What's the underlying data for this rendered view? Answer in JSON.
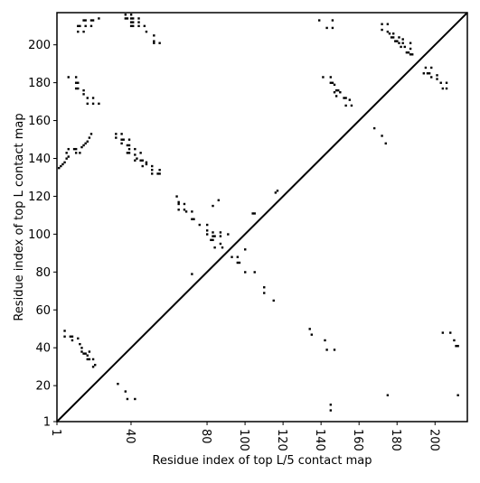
{
  "chart_data": {
    "type": "heatmap",
    "xlabel": "Residue index of top L/5 contact map",
    "ylabel": "Residue index of top L contact map",
    "xlim": [
      1,
      217
    ],
    "ylim": [
      1,
      217
    ],
    "x_ticks": [
      {
        "value": 1,
        "label": "1"
      },
      {
        "value": 40,
        "label": "40"
      },
      {
        "value": 80,
        "label": "80"
      },
      {
        "value": 100,
        "label": "100"
      },
      {
        "value": 120,
        "label": "120"
      },
      {
        "value": 140,
        "label": "140"
      },
      {
        "value": 160,
        "label": "160"
      },
      {
        "value": 180,
        "label": "180"
      },
      {
        "value": 200,
        "label": "200"
      }
    ],
    "y_ticks": [
      {
        "value": 1,
        "label": "1"
      },
      {
        "value": 20,
        "label": "20"
      },
      {
        "value": 40,
        "label": "40"
      },
      {
        "value": 60,
        "label": "60"
      },
      {
        "value": 80,
        "label": "80"
      },
      {
        "value": 100,
        "label": "100"
      },
      {
        "value": 120,
        "label": "120"
      },
      {
        "value": 140,
        "label": "140"
      },
      {
        "value": 160,
        "label": "160"
      },
      {
        "value": 180,
        "label": "180"
      },
      {
        "value": 200,
        "label": "200"
      }
    ],
    "diagonal": true,
    "grid": false,
    "contact_color": "#000000",
    "contacts": [
      [
        15,
        213
      ],
      [
        16,
        213
      ],
      [
        19,
        213
      ],
      [
        20,
        213
      ],
      [
        23,
        214
      ],
      [
        12,
        210
      ],
      [
        13,
        210
      ],
      [
        16,
        210
      ],
      [
        19,
        210
      ],
      [
        12,
        207
      ],
      [
        15,
        207
      ],
      [
        37,
        216
      ],
      [
        40,
        216
      ],
      [
        37,
        214
      ],
      [
        38,
        214
      ],
      [
        40,
        214
      ],
      [
        41,
        214
      ],
      [
        44,
        214
      ],
      [
        40,
        212
      ],
      [
        41,
        212
      ],
      [
        44,
        212
      ],
      [
        40,
        210
      ],
      [
        41,
        210
      ],
      [
        44,
        210
      ],
      [
        47,
        210
      ],
      [
        48,
        207
      ],
      [
        52,
        205
      ],
      [
        52,
        202
      ],
      [
        52,
        201
      ],
      [
        55,
        201
      ],
      [
        7,
        183
      ],
      [
        11,
        183
      ],
      [
        11,
        180
      ],
      [
        12,
        180
      ],
      [
        11,
        177
      ],
      [
        12,
        177
      ],
      [
        15,
        176
      ],
      [
        15,
        174
      ],
      [
        17,
        172
      ],
      [
        20,
        172
      ],
      [
        17,
        169
      ],
      [
        20,
        169
      ],
      [
        23,
        169
      ],
      [
        32,
        153
      ],
      [
        32,
        151
      ],
      [
        35,
        153
      ],
      [
        35,
        150
      ],
      [
        36,
        150
      ],
      [
        39,
        150
      ],
      [
        35,
        148
      ],
      [
        38,
        147
      ],
      [
        39,
        147
      ],
      [
        39,
        145
      ],
      [
        42,
        145
      ],
      [
        38,
        143
      ],
      [
        39,
        143
      ],
      [
        42,
        142
      ],
      [
        45,
        143
      ],
      [
        43,
        140
      ],
      [
        42,
        139
      ],
      [
        45,
        139
      ],
      [
        46,
        139
      ],
      [
        48,
        138
      ],
      [
        48,
        137
      ],
      [
        46,
        136
      ],
      [
        51,
        136
      ],
      [
        51,
        134
      ],
      [
        55,
        134
      ],
      [
        51,
        132
      ],
      [
        54,
        132
      ],
      [
        55,
        132
      ],
      [
        2,
        135
      ],
      [
        3,
        136
      ],
      [
        4,
        137
      ],
      [
        5,
        138
      ],
      [
        6,
        140
      ],
      [
        7,
        141
      ],
      [
        6,
        143
      ],
      [
        7,
        145
      ],
      [
        10,
        145
      ],
      [
        11,
        145
      ],
      [
        11,
        143
      ],
      [
        13,
        143
      ],
      [
        14,
        146
      ],
      [
        15,
        147
      ],
      [
        16,
        148
      ],
      [
        17,
        149
      ],
      [
        18,
        151
      ],
      [
        19,
        153
      ],
      [
        64,
        120
      ],
      [
        65,
        117
      ],
      [
        65,
        116
      ],
      [
        68,
        116
      ],
      [
        65,
        113
      ],
      [
        68,
        113
      ],
      [
        69,
        112
      ],
      [
        72,
        112
      ],
      [
        72,
        108
      ],
      [
        73,
        108
      ],
      [
        76,
        105
      ],
      [
        80,
        105
      ],
      [
        80,
        102
      ],
      [
        80,
        100
      ],
      [
        83,
        101
      ],
      [
        83,
        99
      ],
      [
        84,
        99
      ],
      [
        87,
        101
      ],
      [
        87,
        99
      ],
      [
        82,
        97
      ],
      [
        83,
        97
      ],
      [
        87,
        95
      ],
      [
        84,
        93
      ],
      [
        88,
        93
      ],
      [
        83,
        115
      ],
      [
        86,
        118
      ],
      [
        91,
        100
      ],
      [
        72,
        79
      ],
      [
        96,
        85
      ],
      [
        97,
        85
      ],
      [
        93,
        88
      ],
      [
        96,
        88
      ],
      [
        100,
        92
      ],
      [
        100,
        80
      ],
      [
        105,
        80
      ],
      [
        104,
        111
      ],
      [
        105,
        111
      ],
      [
        116,
        122
      ],
      [
        117,
        123
      ],
      [
        110,
        72
      ],
      [
        110,
        69
      ],
      [
        115,
        65
      ],
      [
        134,
        50
      ],
      [
        135,
        47
      ],
      [
        142,
        44
      ],
      [
        143,
        39
      ],
      [
        147,
        39
      ],
      [
        145,
        10
      ],
      [
        145,
        7
      ],
      [
        139,
        213
      ],
      [
        143,
        209
      ],
      [
        146,
        213
      ],
      [
        146,
        209
      ],
      [
        141,
        183
      ],
      [
        145,
        183
      ],
      [
        145,
        180
      ],
      [
        146,
        180
      ],
      [
        147,
        179
      ],
      [
        148,
        176
      ],
      [
        149,
        176
      ],
      [
        147,
        175
      ],
      [
        150,
        175
      ],
      [
        148,
        173
      ],
      [
        152,
        172
      ],
      [
        153,
        172
      ],
      [
        153,
        168
      ],
      [
        156,
        168
      ],
      [
        155,
        171
      ],
      [
        172,
        211
      ],
      [
        175,
        211
      ],
      [
        172,
        208
      ],
      [
        175,
        207
      ],
      [
        176,
        206
      ],
      [
        178,
        206
      ],
      [
        177,
        204
      ],
      [
        178,
        204
      ],
      [
        181,
        204
      ],
      [
        183,
        203
      ],
      [
        179,
        202
      ],
      [
        180,
        202
      ],
      [
        181,
        201
      ],
      [
        183,
        201
      ],
      [
        182,
        199
      ],
      [
        184,
        199
      ],
      [
        187,
        201
      ],
      [
        187,
        198
      ],
      [
        185,
        196
      ],
      [
        186,
        196
      ],
      [
        187,
        195
      ],
      [
        188,
        195
      ],
      [
        195,
        188
      ],
      [
        198,
        188
      ],
      [
        194,
        185
      ],
      [
        196,
        185
      ],
      [
        197,
        185
      ],
      [
        198,
        183
      ],
      [
        201,
        184
      ],
      [
        201,
        182
      ],
      [
        203,
        180
      ],
      [
        206,
        180
      ],
      [
        204,
        177
      ],
      [
        206,
        177
      ],
      [
        5,
        49
      ],
      [
        5,
        46
      ],
      [
        8,
        46
      ],
      [
        9,
        46
      ],
      [
        9,
        44
      ],
      [
        12,
        45
      ],
      [
        13,
        42
      ],
      [
        14,
        40
      ],
      [
        14,
        38
      ],
      [
        15,
        37
      ],
      [
        16,
        37
      ],
      [
        17,
        36
      ],
      [
        17,
        34
      ],
      [
        18,
        38
      ],
      [
        18,
        34
      ],
      [
        20,
        34
      ],
      [
        21,
        31
      ],
      [
        20,
        30
      ],
      [
        33,
        21
      ],
      [
        37,
        17
      ],
      [
        38,
        13
      ],
      [
        42,
        13
      ],
      [
        168,
        156
      ],
      [
        172,
        152
      ],
      [
        174,
        148
      ],
      [
        175,
        15
      ],
      [
        204,
        48
      ],
      [
        208,
        48
      ],
      [
        210,
        44
      ],
      [
        211,
        41
      ],
      [
        212,
        41
      ],
      [
        212,
        15
      ]
    ]
  }
}
